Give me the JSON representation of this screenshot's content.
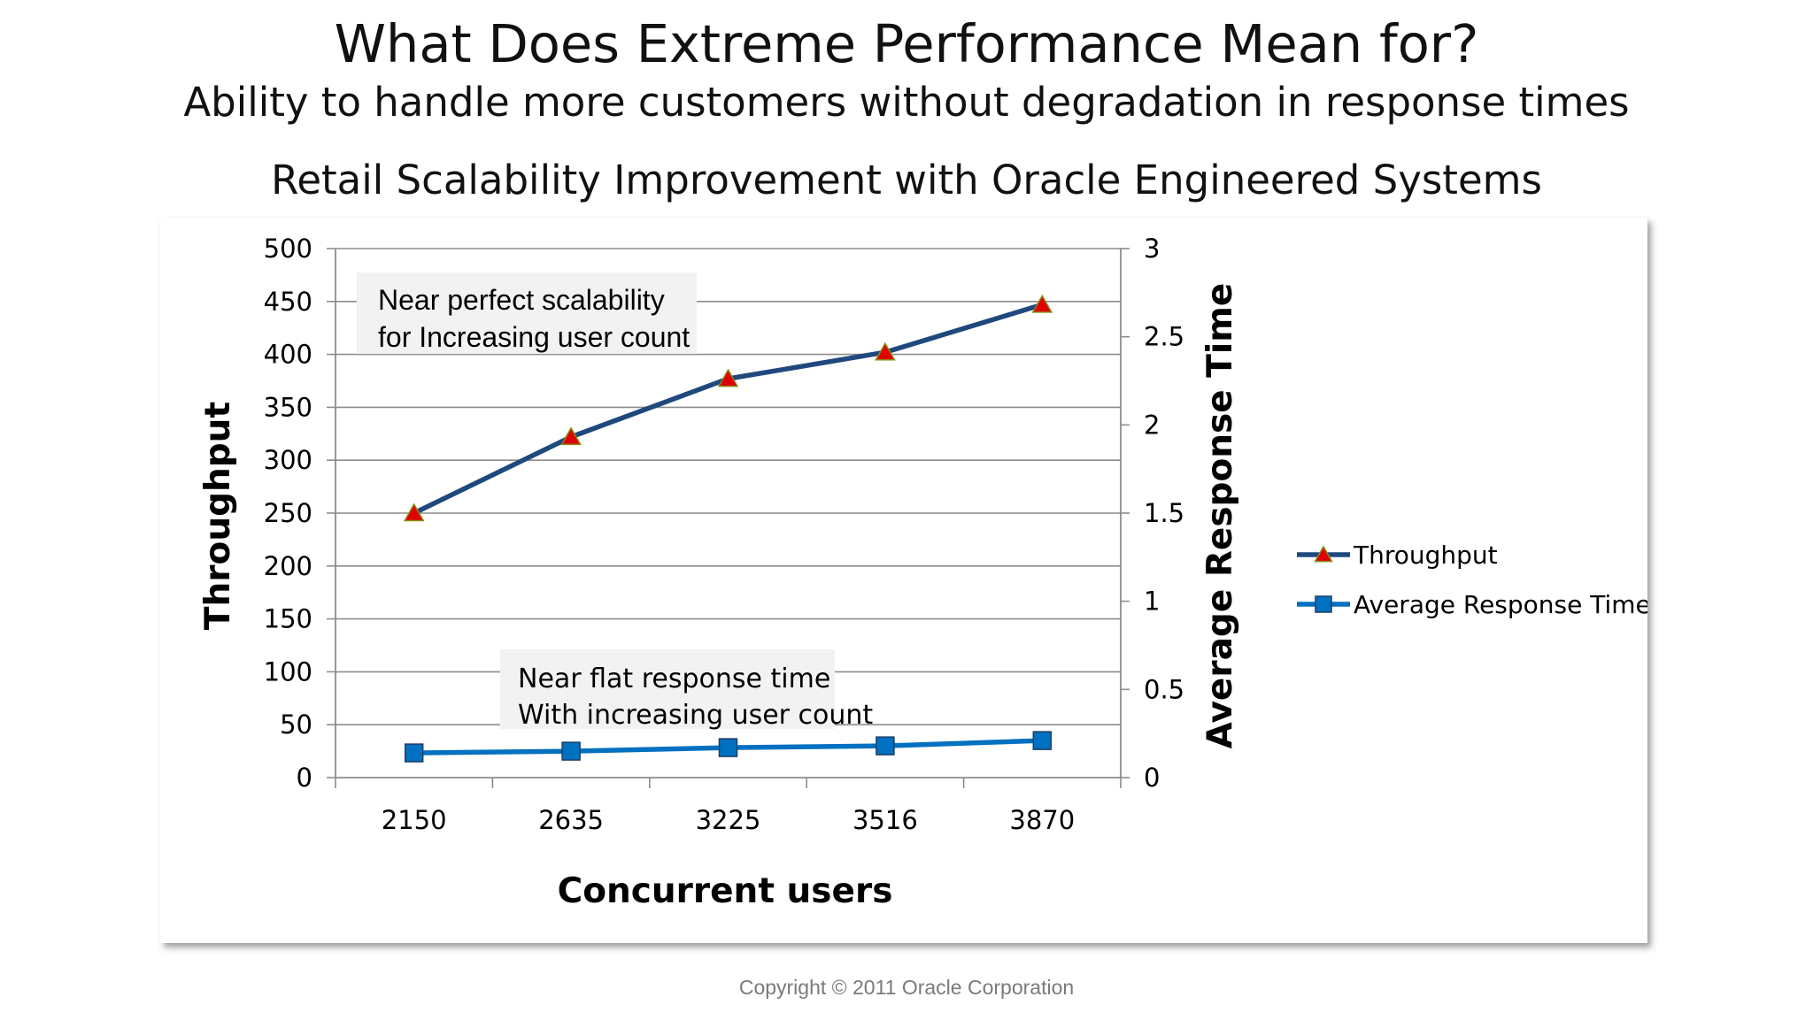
{
  "slide": {
    "title": "What Does Extreme Performance Mean for?",
    "subtitle": "Ability to handle more customers without degradation in response times",
    "copyright": "Copyright © 2011 Oracle Corporation"
  },
  "chart_data": {
    "type": "line",
    "title": "Retail Scalability Improvement with Oracle Engineered Systems",
    "xlabel": "Concurrent users",
    "ylabel": "Throughput",
    "y2label": "Average Response Time",
    "categories": [
      "2150",
      "2635",
      "3225",
      "3516",
      "3870"
    ],
    "ylim": [
      0,
      500
    ],
    "yticks": [
      "0",
      "50",
      "100",
      "150",
      "200",
      "250",
      "300",
      "350",
      "400",
      "450",
      "500"
    ],
    "y2lim": [
      0,
      3
    ],
    "y2ticks": [
      "0",
      "0.5",
      "1",
      "1.5",
      "2",
      "2.5",
      "3"
    ],
    "grid": true,
    "legend_position": "right",
    "series": [
      {
        "name": "Throughput",
        "axis": "left",
        "marker": "triangle",
        "color": "#1f497d",
        "marker_color": "#e00000",
        "values": [
          250,
          322,
          377,
          402,
          447
        ]
      },
      {
        "name": "Average Response Time",
        "axis": "right",
        "marker": "square",
        "color": "#0070c0",
        "marker_color": "#0070c0",
        "values": [
          0.14,
          0.15,
          0.17,
          0.18,
          0.21
        ]
      }
    ],
    "annotations": [
      {
        "lines": [
          "Near perfect scalability",
          "for Increasing user count"
        ]
      },
      {
        "lines": [
          "Near flat response time",
          "With increasing user count"
        ]
      }
    ]
  }
}
